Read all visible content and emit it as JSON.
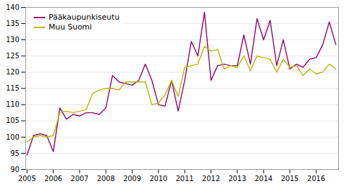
{
  "chart_data": {
    "type": "line",
    "x": [
      2005,
      2005.25,
      2005.5,
      2005.75,
      2006,
      2006.25,
      2006.5,
      2006.75,
      2007,
      2007.25,
      2007.5,
      2007.75,
      2008,
      2008.25,
      2008.5,
      2008.75,
      2009,
      2009.25,
      2009.5,
      2009.75,
      2010,
      2010.25,
      2010.5,
      2010.75,
      2011,
      2011.25,
      2011.5,
      2011.75,
      2012,
      2012.25,
      2012.5,
      2012.75,
      2013,
      2013.25,
      2013.5,
      2013.75,
      2014,
      2014.25,
      2014.5,
      2014.75,
      2015,
      2015.25,
      2015.5,
      2015.75,
      2016,
      2016.25,
      2016.5,
      2016.75
    ],
    "series": [
      {
        "name": "Pääkaupunkiseutu",
        "color": "#990066",
        "values": [
          94.5,
          100.5,
          101.0,
          100.5,
          95.5,
          109.0,
          105.5,
          107.0,
          106.5,
          107.5,
          107.5,
          107.0,
          109.0,
          119.0,
          117.0,
          116.5,
          116.0,
          117.5,
          122.5,
          117.5,
          110.0,
          109.5,
          117.5,
          108.0,
          117.5,
          129.5,
          125.0,
          138.5,
          117.5,
          122.0,
          122.5,
          122.0,
          122.0,
          131.5,
          122.5,
          136.5,
          130.0,
          136.0,
          122.0,
          130.0,
          121.0,
          122.5,
          121.5,
          124.0,
          124.5,
          128.5,
          135.5,
          128.5
        ]
      },
      {
        "name": "Muu Suomi",
        "color": "#b5b800",
        "values": [
          98.5,
          100.0,
          100.5,
          100.0,
          100.5,
          107.5,
          108.0,
          107.5,
          108.0,
          108.5,
          113.5,
          114.5,
          115.0,
          115.0,
          114.5,
          117.0,
          117.0,
          117.0,
          117.0,
          110.0,
          110.5,
          113.0,
          117.5,
          112.5,
          121.5,
          122.0,
          122.5,
          128.0,
          126.5,
          127.0,
          121.0,
          122.0,
          121.5,
          125.0,
          120.5,
          125.0,
          124.5,
          124.0,
          120.0,
          124.0,
          121.5,
          122.0,
          119.0,
          121.0,
          119.5,
          120.0,
          122.5,
          121.0
        ]
      }
    ],
    "xlim": [
      2004.95,
      2016.85
    ],
    "xticks": [
      2005,
      2006,
      2007,
      2008,
      2009,
      2010,
      2011,
      2012,
      2013,
      2014,
      2015,
      2016
    ],
    "ylim": [
      90,
      140
    ],
    "yticks": [
      90,
      95,
      100,
      105,
      110,
      115,
      120,
      125,
      130,
      135,
      140
    ],
    "grid": true,
    "legend": "upper left"
  }
}
